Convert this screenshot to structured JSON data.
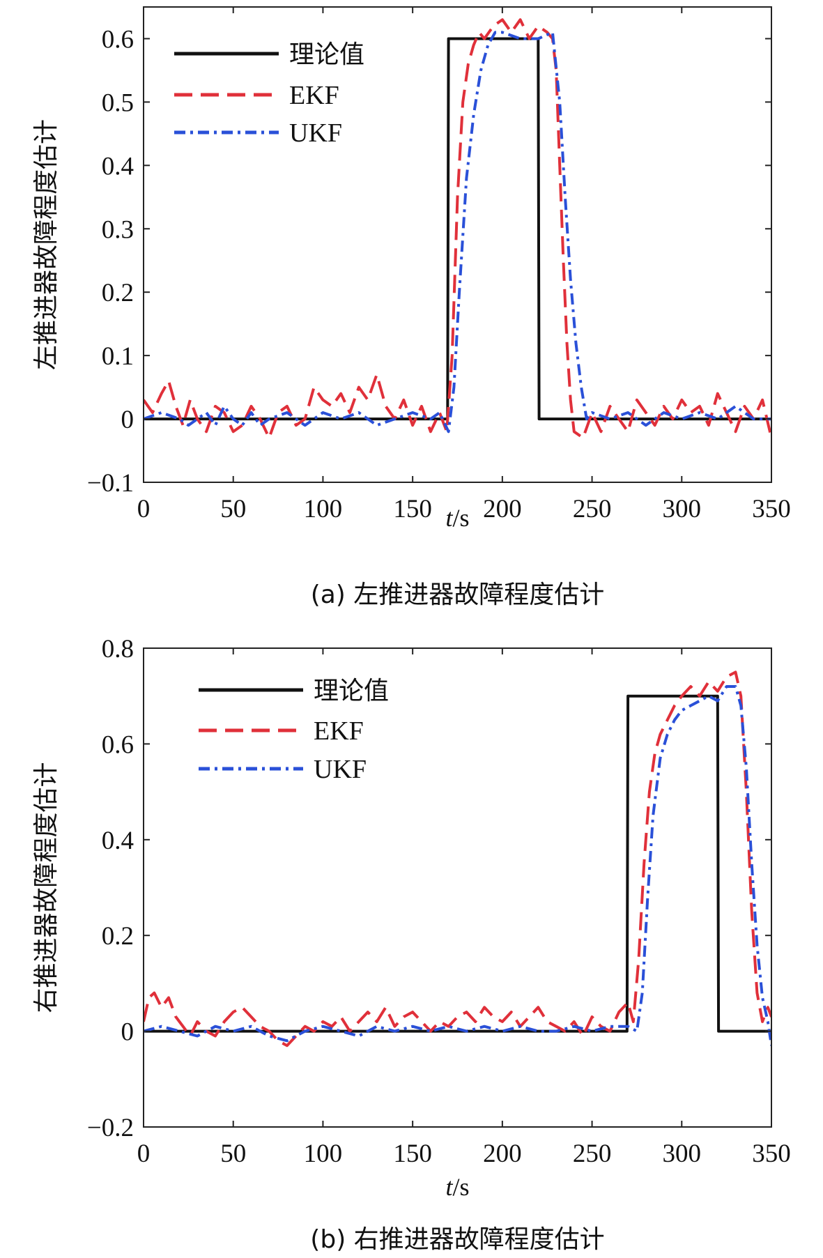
{
  "chart_data": [
    {
      "type": "line",
      "caption": "(a) 左推进器故障程度估计",
      "xlabel_italic": "t",
      "xlabel_unit": "/s",
      "ylabel": "左推进器故障程度估计",
      "xlim": [
        0,
        350
      ],
      "ylim": [
        -0.1,
        0.65
      ],
      "xticks": [
        0,
        50,
        100,
        150,
        200,
        250,
        300,
        350
      ],
      "yticks": [
        -0.1,
        0,
        0.1,
        0.2,
        0.3,
        0.4,
        0.5,
        0.6
      ],
      "ytick_labels": [
        "−0.1",
        "0",
        "0.1",
        "0.2",
        "0.3",
        "0.4",
        "0.5",
        "0.6"
      ],
      "legend": {
        "position": "top-left",
        "entries": [
          "理论值",
          "EKF",
          "UKF"
        ]
      },
      "series": [
        {
          "name": "理论值",
          "style": "solid",
          "color": "#111111",
          "x": [
            0,
            169.5,
            170,
            220,
            220.5,
            350
          ],
          "values": [
            0,
            0,
            0.6,
            0.6,
            0,
            0
          ]
        },
        {
          "name": "EKF",
          "style": "dashed",
          "color": "#e0303a",
          "x": [
            0,
            5,
            10,
            14,
            18,
            22,
            26,
            30,
            35,
            40,
            45,
            50,
            55,
            60,
            65,
            70,
            75,
            80,
            85,
            90,
            95,
            100,
            105,
            110,
            115,
            120,
            125,
            130,
            135,
            140,
            145,
            150,
            155,
            160,
            165,
            169,
            172,
            175,
            178,
            181,
            184,
            187,
            190,
            195,
            200,
            205,
            210,
            215,
            220,
            225,
            228,
            230,
            232,
            234,
            236,
            238,
            240,
            245,
            250,
            255,
            260,
            265,
            270,
            275,
            280,
            285,
            290,
            295,
            300,
            305,
            310,
            315,
            320,
            325,
            330,
            335,
            340,
            345,
            350
          ],
          "values": [
            0.03,
            0.01,
            0.04,
            0.06,
            0.02,
            -0.01,
            0.03,
            0.0,
            -0.02,
            0.02,
            0.01,
            -0.02,
            -0.01,
            0.02,
            0.0,
            -0.03,
            0.01,
            0.02,
            -0.01,
            0.0,
            0.05,
            0.03,
            0.02,
            0.04,
            0.01,
            0.05,
            0.03,
            0.07,
            0.02,
            0.0,
            0.03,
            -0.01,
            0.02,
            -0.02,
            0.01,
            -0.02,
            0.1,
            0.35,
            0.5,
            0.56,
            0.59,
            0.61,
            0.6,
            0.62,
            0.63,
            0.61,
            0.63,
            0.6,
            0.62,
            0.61,
            0.6,
            0.55,
            0.4,
            0.25,
            0.12,
            0.03,
            -0.02,
            -0.03,
            0.01,
            -0.02,
            0.02,
            0.0,
            -0.02,
            0.03,
            0.01,
            -0.01,
            0.02,
            0.0,
            0.03,
            0.01,
            0.02,
            -0.01,
            0.04,
            0.01,
            -0.02,
            0.02,
            0.0,
            0.03,
            -0.03
          ]
        },
        {
          "name": "UKF",
          "style": "dashdot",
          "color": "#2a50d8",
          "x": [
            0,
            10,
            20,
            25,
            30,
            35,
            40,
            45,
            50,
            55,
            60,
            65,
            70,
            80,
            90,
            95,
            100,
            110,
            120,
            130,
            140,
            150,
            160,
            165,
            170,
            173,
            176,
            180,
            184,
            188,
            192,
            196,
            200,
            210,
            220,
            228,
            232,
            235,
            238,
            241,
            244,
            247,
            250,
            260,
            270,
            280,
            290,
            300,
            310,
            320,
            330,
            340,
            350
          ],
          "values": [
            0.0,
            0.01,
            0.0,
            -0.01,
            0.0,
            0.01,
            -0.01,
            0.02,
            0.0,
            -0.01,
            0.01,
            -0.01,
            0.0,
            0.01,
            -0.01,
            0.0,
            0.01,
            0.0,
            0.01,
            -0.01,
            0.0,
            0.01,
            0.0,
            0.01,
            -0.02,
            0.05,
            0.2,
            0.38,
            0.48,
            0.55,
            0.59,
            0.61,
            0.61,
            0.6,
            0.6,
            0.61,
            0.5,
            0.35,
            0.22,
            0.12,
            0.05,
            0.0,
            0.01,
            0.0,
            0.01,
            -0.01,
            0.01,
            0.0,
            0.01,
            0.0,
            0.02,
            0.0,
            0.0
          ]
        }
      ]
    },
    {
      "type": "line",
      "caption": "(b) 右推进器故障程度估计",
      "xlabel_italic": "t",
      "xlabel_unit": "/s",
      "ylabel": "右推进器故障程度估计",
      "xlim": [
        0,
        350
      ],
      "ylim": [
        -0.2,
        0.8
      ],
      "xticks": [
        0,
        50,
        100,
        150,
        200,
        250,
        300,
        350
      ],
      "yticks": [
        -0.2,
        0,
        0.2,
        0.4,
        0.6,
        0.8
      ],
      "ytick_labels": [
        "−0.2",
        "0",
        "0.2",
        "0.4",
        "0.6",
        "0.8"
      ],
      "legend": {
        "position": "top-left",
        "entries": [
          "理论值",
          "EKF",
          "UKF"
        ]
      },
      "series": [
        {
          "name": "理论值",
          "style": "solid",
          "color": "#111111",
          "x": [
            0,
            269.5,
            270,
            320,
            320.5,
            350
          ],
          "values": [
            0,
            0,
            0.7,
            0.7,
            0,
            0
          ]
        },
        {
          "name": "EKF",
          "style": "dashed",
          "color": "#e0303a",
          "x": [
            0,
            3,
            6,
            10,
            14,
            18,
            22,
            26,
            30,
            35,
            40,
            45,
            50,
            55,
            60,
            65,
            70,
            75,
            80,
            85,
            90,
            95,
            100,
            105,
            110,
            115,
            120,
            125,
            130,
            135,
            140,
            145,
            150,
            155,
            160,
            165,
            170,
            175,
            180,
            185,
            190,
            195,
            200,
            205,
            210,
            215,
            220,
            225,
            230,
            235,
            240,
            245,
            250,
            255,
            260,
            265,
            270,
            273,
            276,
            279,
            282,
            285,
            288,
            292,
            296,
            300,
            305,
            310,
            315,
            320,
            325,
            330,
            333,
            336,
            339,
            342,
            345,
            348,
            350
          ],
          "values": [
            0.02,
            0.07,
            0.08,
            0.05,
            0.07,
            0.03,
            0.01,
            -0.01,
            0.02,
            0.0,
            -0.01,
            0.02,
            0.04,
            0.05,
            0.03,
            0.01,
            0.0,
            -0.02,
            -0.03,
            -0.01,
            0.01,
            0.0,
            0.02,
            0.01,
            0.03,
            0.0,
            0.02,
            0.04,
            0.02,
            0.05,
            0.01,
            0.03,
            0.04,
            0.02,
            0.0,
            0.02,
            0.01,
            0.03,
            0.04,
            0.02,
            0.05,
            0.03,
            0.02,
            0.04,
            0.01,
            0.03,
            0.05,
            0.02,
            0.01,
            0.0,
            0.02,
            -0.01,
            0.03,
            0.01,
            0.0,
            0.04,
            0.06,
            0.02,
            0.15,
            0.35,
            0.5,
            0.58,
            0.62,
            0.65,
            0.68,
            0.7,
            0.72,
            0.7,
            0.73,
            0.71,
            0.74,
            0.75,
            0.7,
            0.5,
            0.25,
            0.08,
            0.02,
            0.05,
            0.03
          ]
        },
        {
          "name": "UKF",
          "style": "dashdot",
          "color": "#2a50d8",
          "x": [
            0,
            10,
            20,
            30,
            40,
            50,
            60,
            70,
            80,
            90,
            100,
            110,
            120,
            130,
            140,
            150,
            160,
            170,
            180,
            190,
            200,
            210,
            220,
            230,
            240,
            250,
            260,
            270,
            275,
            278,
            281,
            284,
            288,
            292,
            296,
            300,
            305,
            310,
            315,
            320,
            325,
            330,
            333,
            336,
            339,
            342,
            345,
            348,
            350
          ],
          "values": [
            0.0,
            0.01,
            0.0,
            -0.01,
            0.01,
            0.0,
            0.01,
            -0.01,
            -0.02,
            0.0,
            0.01,
            0.0,
            -0.01,
            0.01,
            0.0,
            0.01,
            0.0,
            0.01,
            0.0,
            0.01,
            0.0,
            0.01,
            0.0,
            0.0,
            0.01,
            0.0,
            0.01,
            0.01,
            0.0,
            0.08,
            0.28,
            0.45,
            0.57,
            0.62,
            0.65,
            0.67,
            0.68,
            0.69,
            0.7,
            0.69,
            0.72,
            0.72,
            0.68,
            0.55,
            0.35,
            0.18,
            0.07,
            0.02,
            -0.03
          ]
        }
      ]
    }
  ]
}
